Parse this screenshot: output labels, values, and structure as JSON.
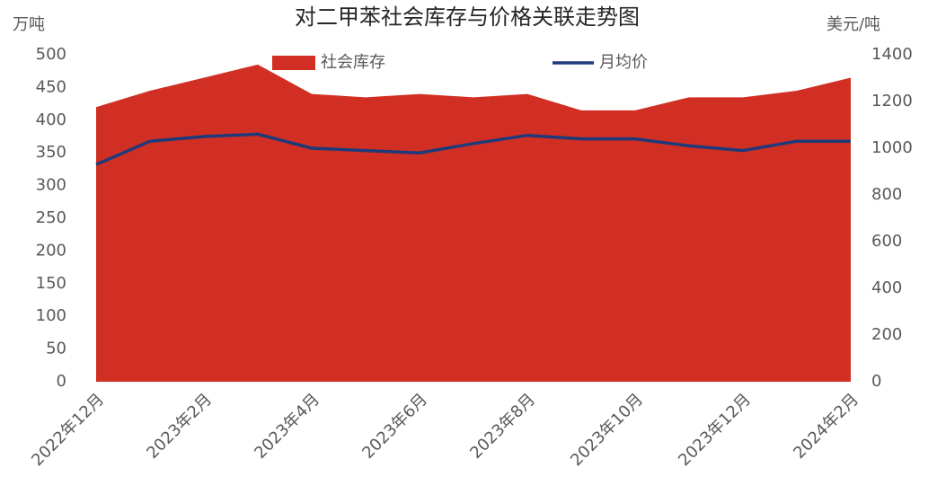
{
  "chart_data": {
    "type": "area",
    "title": "对二甲苯社会库存与价格关联走势图",
    "y_label": "万吨",
    "y2_label": "美元/吨",
    "categories": [
      "2022年12月",
      null,
      "2023年2月",
      null,
      "2023年4月",
      null,
      "2023年6月",
      null,
      "2023年8月",
      null,
      "2023年10月",
      null,
      "2023年12月",
      null,
      "2024年2月"
    ],
    "series": [
      {
        "name": "社会库存",
        "type": "area",
        "color": "#d12f23",
        "values": [
          420,
          445,
          465,
          485,
          440,
          435,
          440,
          435,
          440,
          415,
          415,
          435,
          435,
          445,
          465
        ]
      },
      {
        "name": "月均价",
        "type": "line",
        "color": "#1f3a7a",
        "axis": "y2",
        "values": [
          930,
          1030,
          1050,
          1060,
          1000,
          990,
          980,
          1020,
          1055,
          1040,
          1040,
          1010,
          990,
          1030,
          1030
        ]
      }
    ],
    "ylim": [
      0,
      500
    ],
    "yticks": [
      0,
      50,
      100,
      150,
      200,
      250,
      300,
      350,
      400,
      450,
      500
    ],
    "y2lim": [
      0,
      1400
    ],
    "y2ticks": [
      0,
      200,
      400,
      600,
      800,
      1000,
      1200,
      1400
    ],
    "grid": false
  }
}
